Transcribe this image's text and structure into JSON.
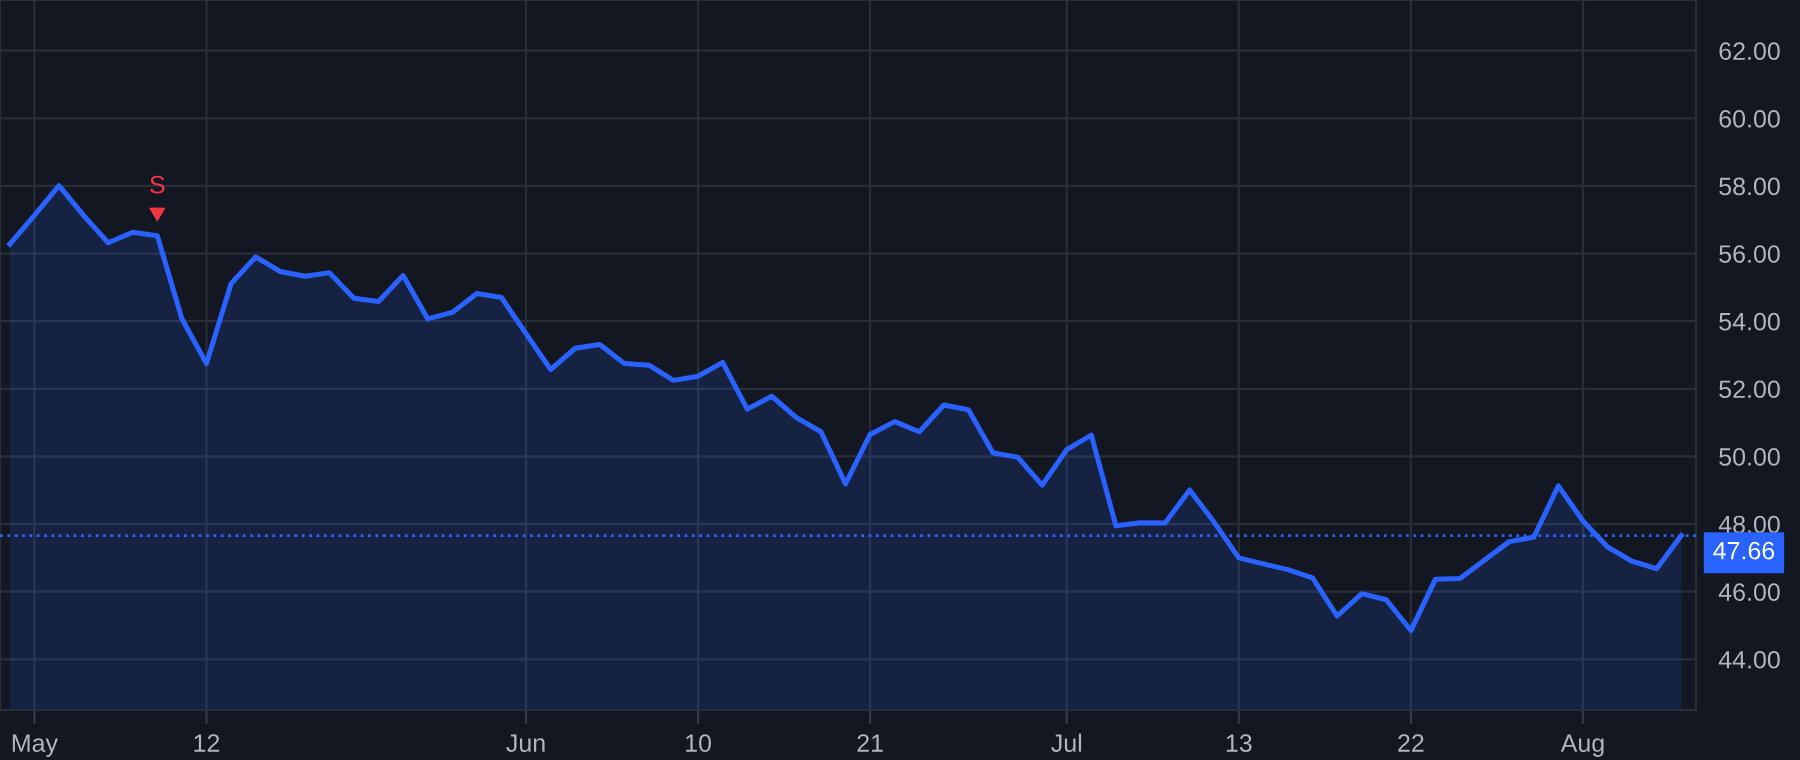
{
  "chart_data": {
    "type": "area",
    "categories": [
      null,
      "May",
      null,
      null,
      null,
      null,
      null,
      null,
      "12",
      null,
      null,
      null,
      null,
      null,
      null,
      null,
      null,
      null,
      null,
      null,
      null,
      "Jun",
      null,
      null,
      null,
      null,
      null,
      null,
      "10",
      null,
      null,
      null,
      null,
      null,
      null,
      "21",
      null,
      null,
      null,
      null,
      null,
      null,
      null,
      "Jul",
      null,
      null,
      null,
      null,
      null,
      null,
      "13",
      null,
      null,
      null,
      null,
      null,
      null,
      "22",
      null,
      null,
      null,
      null,
      null,
      null,
      "Aug",
      null,
      null,
      null,
      null
    ],
    "series": [
      {
        "color": "#2962ff",
        "values": [
          56.28,
          57.13,
          58.01,
          57.13,
          56.32,
          56.63,
          56.53,
          54.07,
          52.75,
          55.11,
          55.9,
          55.47,
          55.33,
          55.43,
          54.68,
          54.58,
          55.35,
          54.07,
          54.26,
          54.82,
          54.7,
          53.63,
          52.57,
          53.2,
          53.31,
          52.75,
          52.7,
          52.25,
          52.37,
          52.78,
          51.4,
          51.78,
          51.15,
          50.73,
          49.19,
          50.65,
          51.03,
          50.73,
          51.52,
          51.38,
          50.1,
          49.98,
          49.15,
          50.2,
          50.63,
          47.95,
          48.04,
          48.03,
          49.01,
          48.05,
          47.0,
          46.82,
          46.65,
          46.41,
          45.28,
          45.94,
          45.76,
          44.85,
          46.37,
          46.39,
          46.94,
          47.48,
          47.61,
          49.13,
          48.09,
          47.32,
          46.9,
          46.68,
          47.66
        ]
      }
    ],
    "ylim": [
      42.5,
      63.5
    ],
    "yticks": [
      {
        "value": 44,
        "label": "44.00"
      },
      {
        "value": 46,
        "label": "46.00"
      },
      {
        "value": 48,
        "label": "48.00"
      },
      {
        "value": 50,
        "label": "50.00"
      },
      {
        "value": 52,
        "label": "52.00"
      },
      {
        "value": 54,
        "label": "54.00"
      },
      {
        "value": 56,
        "label": "56.00"
      },
      {
        "value": 58,
        "label": "58.00"
      },
      {
        "value": 60,
        "label": "60.00"
      },
      {
        "value": 62,
        "label": "62.00"
      }
    ],
    "ref_lines": [
      {
        "axis": "y",
        "value": 47.66,
        "label": "47.66",
        "color": "#2962ff",
        "line_style": "dotted"
      }
    ],
    "annotations": [
      {
        "text": "S",
        "y": 56.53
      }
    ],
    "grid": true,
    "legend": false
  }
}
